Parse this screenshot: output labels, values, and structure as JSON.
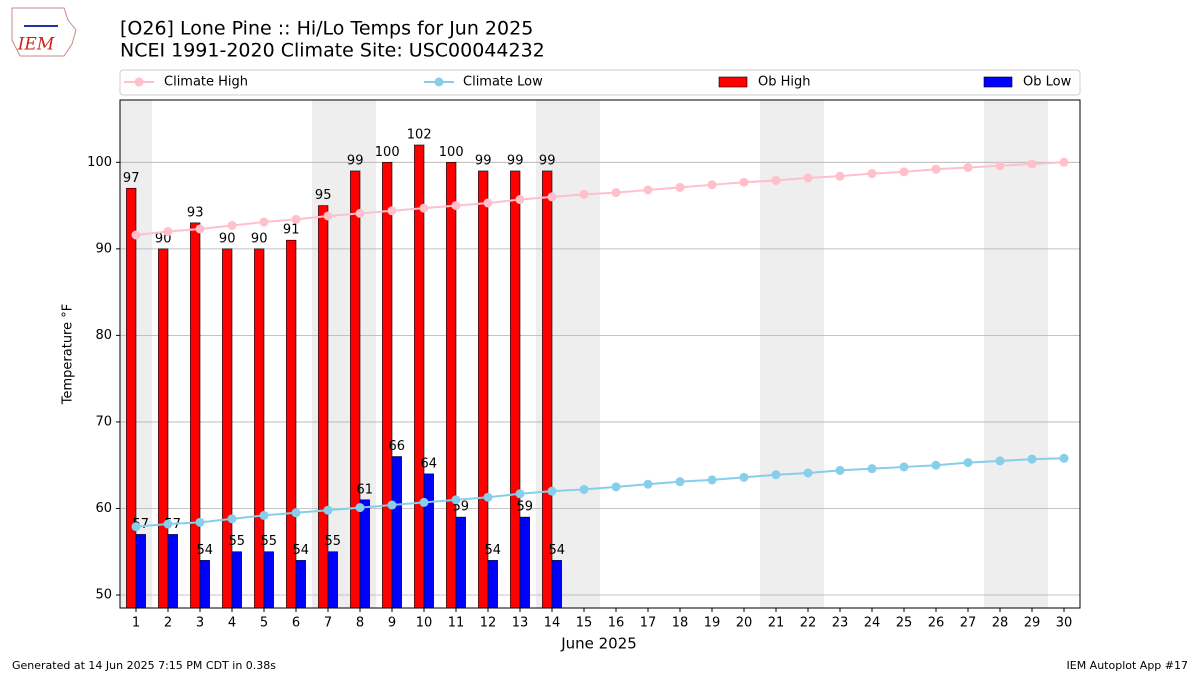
{
  "logo": "IEM",
  "footer_left": "Generated at 14 Jun 2025 7:15 PM CDT in 0.38s",
  "footer_right": "IEM Autoplot App #17",
  "chart_data": {
    "type": "bar",
    "title": "[O26] Lone Pine :: Hi/Lo Temps for Jun 2025",
    "subtitle": "NCEI 1991-2020 Climate Site: USC00044232",
    "xlabel": "June 2025",
    "ylabel": "Temperature °F",
    "x": [
      1,
      2,
      3,
      4,
      5,
      6,
      7,
      8,
      9,
      10,
      11,
      12,
      13,
      14,
      15,
      16,
      17,
      18,
      19,
      20,
      21,
      22,
      23,
      24,
      25,
      26,
      27,
      28,
      29,
      30
    ],
    "xlim": [
      0.5,
      30.5
    ],
    "xticks": [
      1,
      2,
      3,
      4,
      5,
      6,
      7,
      8,
      9,
      10,
      11,
      12,
      13,
      14,
      15,
      16,
      17,
      18,
      19,
      20,
      21,
      22,
      23,
      24,
      25,
      26,
      27,
      28,
      29,
      30
    ],
    "ylim": [
      48.5,
      107.2
    ],
    "yticks": [
      50,
      60,
      70,
      80,
      90,
      100
    ],
    "grid": true,
    "legend": "top",
    "weekend_days": [
      1,
      7,
      8,
      14,
      15,
      21,
      22,
      28,
      29
    ],
    "weekend_color": "#eeeeee",
    "series": [
      {
        "name": "Climate High",
        "type": "line",
        "color": "#ffc0cb",
        "values": [
          91.6,
          92.0,
          92.3,
          92.7,
          93.1,
          93.4,
          93.8,
          94.1,
          94.4,
          94.7,
          95.0,
          95.3,
          95.7,
          96.0,
          96.3,
          96.5,
          96.8,
          97.1,
          97.4,
          97.7,
          97.9,
          98.2,
          98.4,
          98.7,
          98.9,
          99.2,
          99.4,
          99.6,
          99.8,
          100.0
        ]
      },
      {
        "name": "Climate Low",
        "type": "line",
        "color": "#87ceeb",
        "values": [
          57.9,
          58.2,
          58.4,
          58.8,
          59.2,
          59.5,
          59.8,
          60.1,
          60.4,
          60.7,
          61.0,
          61.3,
          61.7,
          62.0,
          62.2,
          62.5,
          62.8,
          63.1,
          63.3,
          63.6,
          63.9,
          64.1,
          64.4,
          64.6,
          64.8,
          65.0,
          65.3,
          65.5,
          65.7,
          65.8
        ]
      },
      {
        "name": "Ob High",
        "type": "bar",
        "color": "#ff0000",
        "values": [
          97,
          90,
          93,
          90,
          90,
          91,
          95,
          99,
          100,
          102,
          100,
          99,
          99,
          99,
          null,
          null,
          null,
          null,
          null,
          null,
          null,
          null,
          null,
          null,
          null,
          null,
          null,
          null,
          null,
          null
        ]
      },
      {
        "name": "Ob Low",
        "type": "bar",
        "color": "#0000ff",
        "values": [
          57,
          57,
          54,
          55,
          55,
          54,
          55,
          61,
          66,
          64,
          59,
          54,
          59,
          54,
          null,
          null,
          null,
          null,
          null,
          null,
          null,
          null,
          null,
          null,
          null,
          null,
          null,
          null,
          null,
          null
        ]
      }
    ]
  }
}
